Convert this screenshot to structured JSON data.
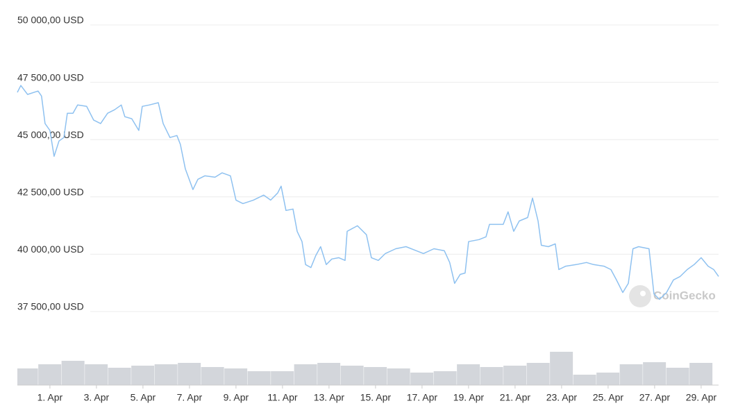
{
  "chart_data": {
    "type": "line",
    "x": [
      -0.4,
      -0.25,
      0.04,
      0.49,
      0.64,
      0.79,
      1.0,
      1.18,
      1.39,
      1.6,
      1.75,
      1.99,
      2.19,
      2.58,
      2.88,
      3.18,
      3.48,
      3.78,
      4.07,
      4.22,
      4.52,
      4.82,
      4.97,
      5.27,
      5.66,
      5.87,
      6.16,
      6.46,
      6.61,
      6.82,
      7.15,
      7.36,
      7.66,
      8.1,
      8.4,
      8.76,
      9.0,
      9.3,
      9.75,
      10.19,
      10.49,
      10.79,
      10.94,
      11.15,
      11.45,
      11.63,
      11.84,
      11.99,
      12.22,
      12.43,
      12.64,
      12.88,
      13.12,
      13.42,
      13.69,
      13.78,
      14.22,
      14.61,
      14.82,
      15.12,
      15.42,
      15.87,
      16.31,
      16.76,
      17.06,
      17.51,
      17.96,
      18.19,
      18.4,
      18.64,
      18.85,
      19.0,
      19.45,
      19.75,
      19.9,
      20.49,
      20.7,
      20.94,
      21.18,
      21.54,
      21.75,
      21.99,
      22.13,
      22.43,
      22.73,
      22.88,
      23.18,
      23.63,
      24.07,
      24.37,
      24.82,
      25.12,
      25.36,
      25.63,
      25.87,
      26.07,
      26.31,
      26.76,
      26.97,
      27.21,
      27.51,
      27.81,
      28.1,
      28.4,
      28.7,
      29.0,
      29.3,
      29.54,
      29.75
    ],
    "series": [
      {
        "color": "#8ec1f0",
        "values": [
          47060,
          47360,
          46970,
          47120,
          46900,
          45700,
          45400,
          44270,
          44940,
          45090,
          46150,
          46150,
          46510,
          46450,
          45850,
          45700,
          46150,
          46300,
          46510,
          46000,
          45910,
          45400,
          46450,
          46510,
          46610,
          45700,
          45090,
          45180,
          44790,
          43730,
          42820,
          43270,
          43420,
          43360,
          43550,
          43420,
          42360,
          42210,
          42360,
          42580,
          42360,
          42670,
          42970,
          41910,
          41970,
          41000,
          40550,
          39550,
          39420,
          39940,
          40330,
          39550,
          39790,
          39850,
          39730,
          41000,
          41240,
          40850,
          39850,
          39730,
          40030,
          40240,
          40330,
          40150,
          40030,
          40240,
          40150,
          39640,
          38730,
          39120,
          39180,
          40550,
          40640,
          40760,
          41300,
          41300,
          41850,
          41000,
          41450,
          41600,
          42450,
          41450,
          40390,
          40330,
          40450,
          39330,
          39480,
          39550,
          39640,
          39550,
          39480,
          39330,
          38880,
          38330,
          38730,
          40240,
          40330,
          40240,
          38270,
          38030,
          38330,
          38880,
          39030,
          39330,
          39550,
          39850,
          39480,
          39330,
          39030
        ]
      }
    ],
    "xlim": [
      -0.4,
      29.75
    ],
    "xticks": [
      {
        "value": 1,
        "label": "1. Apr"
      },
      {
        "value": 3,
        "label": "3. Apr"
      },
      {
        "value": 5,
        "label": "5. Apr"
      },
      {
        "value": 7,
        "label": "7. Apr"
      },
      {
        "value": 9,
        "label": "9. Apr"
      },
      {
        "value": 11,
        "label": "11. Apr"
      },
      {
        "value": 13,
        "label": "13. Apr"
      },
      {
        "value": 15,
        "label": "15. Apr"
      },
      {
        "value": 17,
        "label": "17. Apr"
      },
      {
        "value": 19,
        "label": "19. Apr"
      },
      {
        "value": 21,
        "label": "21. Apr"
      },
      {
        "value": 23,
        "label": "23. Apr"
      },
      {
        "value": 25,
        "label": "25. Apr"
      },
      {
        "value": 27,
        "label": "27. Apr"
      },
      {
        "value": 29,
        "label": "29. Apr"
      }
    ],
    "ylim": [
      37500,
      50000
    ],
    "yticks": [
      {
        "value": 37500,
        "label": "37 500,00 USD"
      },
      {
        "value": 40000,
        "label": "40 000,00 USD"
      },
      {
        "value": 42500,
        "label": "42 500,00 USD"
      },
      {
        "value": 45000,
        "label": "45 000,00 USD"
      },
      {
        "value": 47500,
        "label": "47 500,00 USD"
      },
      {
        "value": 50000,
        "label": "50 000,00 USD"
      }
    ],
    "grid": true,
    "volume": {
      "color": "#d3d6db",
      "y2lim": [
        0,
        60
      ],
      "x": [
        0,
        1,
        2,
        3,
        4,
        5,
        6,
        7,
        8,
        9,
        10,
        11,
        12,
        13,
        14,
        15,
        16,
        17,
        18,
        19,
        20,
        21,
        22,
        23,
        24,
        25,
        26,
        27,
        28,
        29
      ],
      "values": [
        24,
        30,
        35,
        30,
        25,
        28,
        30,
        32,
        26,
        24,
        20,
        20,
        30,
        32,
        28,
        26,
        24,
        18,
        20,
        30,
        26,
        28,
        32,
        48,
        15,
        18,
        30,
        33,
        25,
        32
      ]
    },
    "watermark": "CoinGecko"
  }
}
